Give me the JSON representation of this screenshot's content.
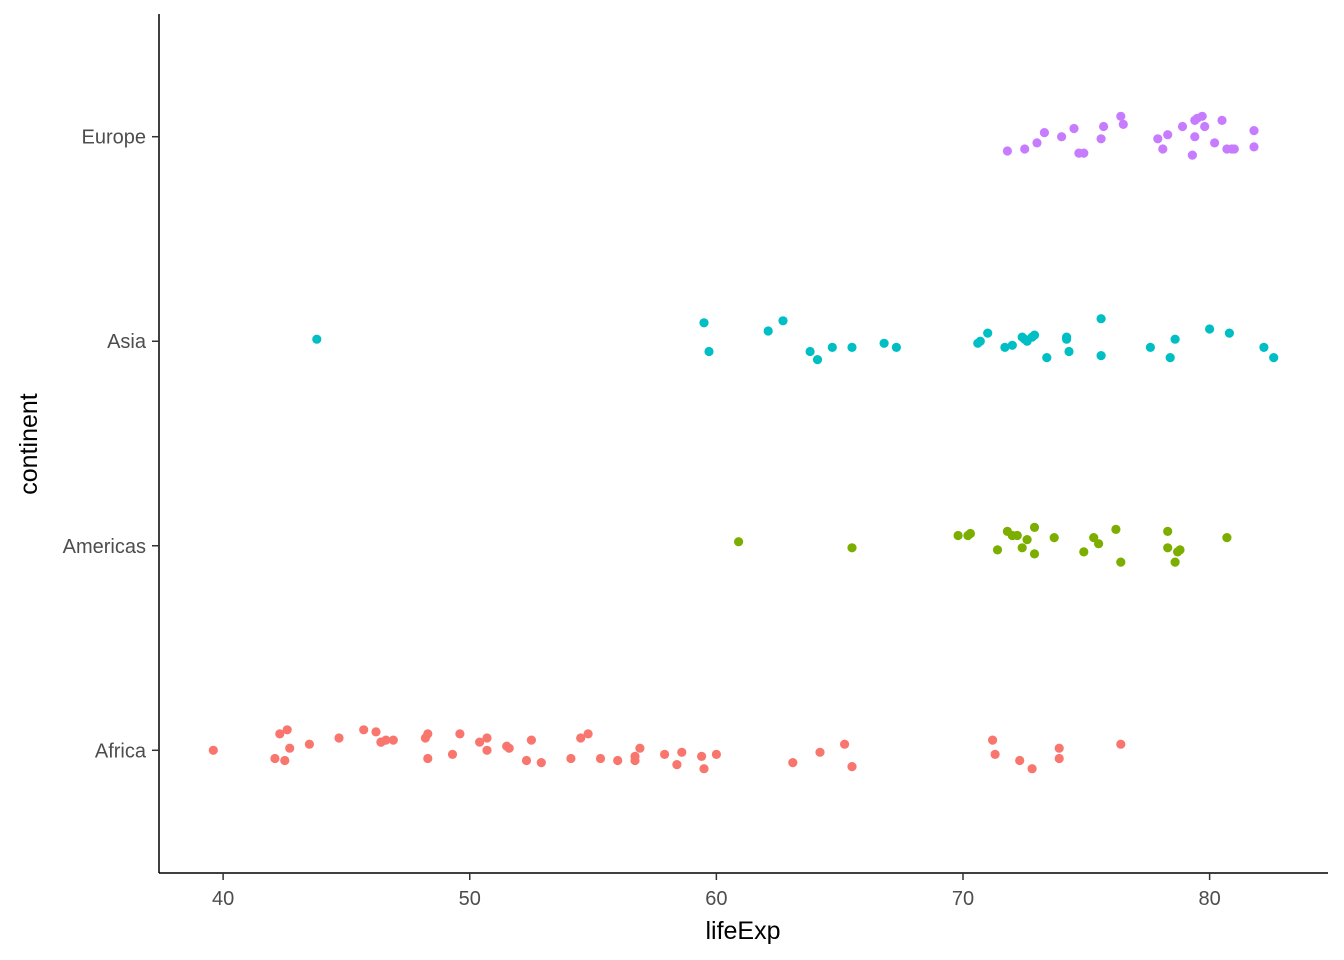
{
  "chart_data": {
    "type": "scatter",
    "title": "",
    "xlabel": "lifeExp",
    "ylabel": "continent",
    "xlim": [
      37.4,
      84.8
    ],
    "xticks": [
      40,
      50,
      60,
      70,
      80
    ],
    "xtick_labels": [
      "40",
      "50",
      "60",
      "70",
      "80"
    ],
    "categories": [
      "Africa",
      "Americas",
      "Asia",
      "Europe"
    ],
    "grid": false,
    "legend": "none",
    "jitter": "vertical jitter within each category",
    "series": [
      {
        "category": "Africa",
        "color": "#F8766D",
        "x": [
          39.6,
          42.1,
          42.3,
          42.5,
          42.6,
          42.7,
          43.5,
          44.7,
          45.7,
          46.2,
          46.4,
          46.4,
          46.6,
          46.9,
          48.2,
          48.3,
          48.3,
          49.3,
          49.6,
          50.4,
          50.7,
          50.7,
          51.5,
          51.6,
          52.3,
          52.5,
          52.9,
          54.1,
          54.5,
          54.8,
          55.3,
          56.0,
          56.7,
          56.7,
          56.9,
          57.9,
          58.4,
          58.6,
          59.4,
          59.5,
          60.0,
          63.1,
          64.2,
          65.2,
          65.5,
          71.2,
          71.3,
          72.3,
          72.8,
          73.9,
          73.9,
          76.4
        ],
        "offset": [
          0.0,
          -0.04,
          0.08,
          -0.05,
          0.1,
          0.01,
          0.03,
          0.06,
          0.1,
          0.09,
          0.04,
          0.04,
          0.05,
          0.05,
          0.06,
          0.08,
          -0.04,
          -0.02,
          0.08,
          0.04,
          0.06,
          0.0,
          0.02,
          0.01,
          -0.05,
          0.05,
          -0.06,
          -0.04,
          0.06,
          0.08,
          -0.04,
          -0.05,
          -0.03,
          -0.05,
          0.01,
          -0.02,
          -0.07,
          -0.01,
          -0.03,
          -0.09,
          -0.02,
          -0.06,
          -0.01,
          0.03,
          -0.08,
          0.05,
          -0.02,
          -0.05,
          -0.09,
          0.01,
          -0.04,
          0.03
        ]
      },
      {
        "category": "Americas",
        "color": "#7CAE00",
        "x": [
          60.9,
          65.5,
          69.8,
          70.2,
          70.3,
          71.4,
          71.8,
          72.0,
          72.2,
          72.4,
          72.6,
          72.9,
          72.9,
          73.7,
          74.9,
          75.3,
          75.5,
          76.2,
          76.4,
          78.3,
          78.3,
          78.6,
          78.7,
          78.8,
          80.7
        ],
        "offset": [
          0.02,
          -0.01,
          0.05,
          0.05,
          0.06,
          -0.02,
          0.07,
          0.05,
          0.05,
          -0.01,
          0.03,
          -0.04,
          0.09,
          0.04,
          -0.03,
          0.04,
          0.01,
          0.08,
          -0.08,
          0.07,
          -0.01,
          -0.08,
          -0.03,
          -0.02,
          0.04
        ]
      },
      {
        "category": "Asia",
        "color": "#00BFC4",
        "x": [
          43.8,
          59.5,
          59.7,
          62.1,
          62.7,
          63.8,
          64.1,
          64.7,
          65.5,
          66.8,
          67.3,
          70.6,
          70.7,
          71.0,
          71.7,
          72.0,
          72.4,
          72.5,
          72.6,
          72.8,
          72.9,
          73.4,
          74.2,
          74.2,
          74.3,
          75.6,
          75.6,
          77.6,
          78.4,
          78.6,
          80.0,
          80.8,
          82.2,
          82.6
        ],
        "offset": [
          0.01,
          0.09,
          -0.05,
          0.05,
          0.1,
          -0.05,
          -0.09,
          -0.03,
          -0.03,
          -0.01,
          -0.03,
          -0.01,
          0.0,
          0.04,
          -0.03,
          -0.02,
          0.02,
          0.01,
          0.0,
          0.02,
          0.03,
          -0.08,
          0.02,
          0.01,
          -0.05,
          0.11,
          -0.07,
          -0.03,
          -0.08,
          0.01,
          0.06,
          0.04,
          -0.03,
          -0.08
        ]
      },
      {
        "category": "Europe",
        "color": "#C77CFF",
        "x": [
          71.8,
          72.5,
          73.0,
          73.3,
          74.0,
          74.5,
          74.7,
          74.9,
          75.6,
          75.7,
          76.4,
          76.5,
          77.9,
          78.1,
          78.3,
          78.9,
          79.3,
          79.4,
          79.4,
          79.5,
          79.7,
          79.8,
          80.2,
          80.5,
          80.7,
          80.9,
          81.0,
          81.8,
          81.8
        ],
        "offset": [
          -0.07,
          -0.06,
          -0.03,
          0.02,
          0.0,
          0.04,
          -0.08,
          -0.08,
          -0.01,
          0.05,
          0.1,
          0.06,
          -0.01,
          -0.06,
          0.01,
          0.05,
          -0.09,
          0.08,
          0.0,
          0.09,
          0.1,
          0.05,
          -0.03,
          0.08,
          -0.06,
          -0.06,
          -0.06,
          0.03,
          -0.05
        ]
      }
    ]
  }
}
